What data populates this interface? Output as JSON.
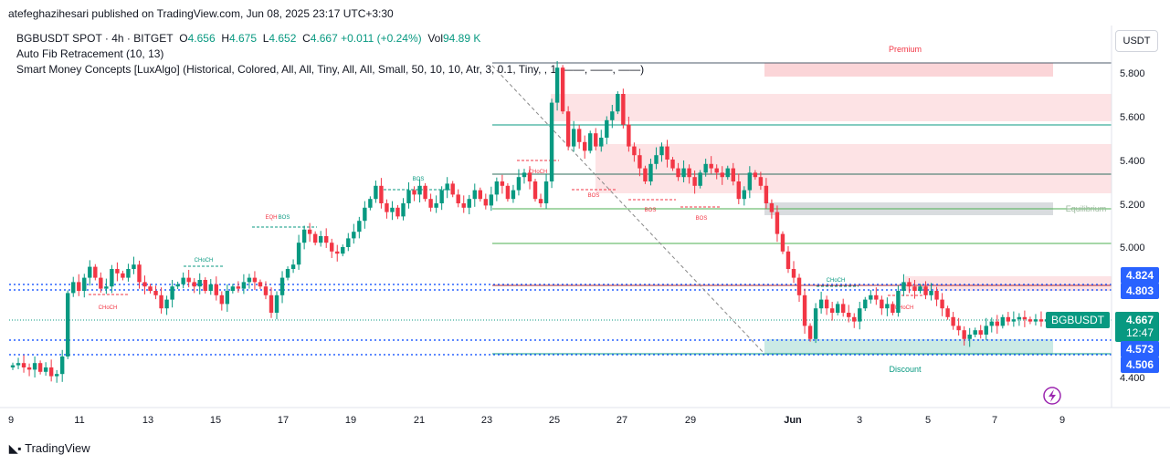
{
  "publisher_line": "atefeghazihesari published on TradingView.com, Jun 08, 2025 23:17 UTC+3:30",
  "legend": {
    "symbol": "BGBUSDT SPOT · 4h · BITGET",
    "o_label": "O",
    "o_value": "4.656",
    "h_label": "H",
    "h_value": "4.675",
    "l_label": "L",
    "l_value": "4.652",
    "c_label": "C",
    "c_value": "4.667",
    "change": "+0.011 (+0.24%)",
    "vol_label": "Vol",
    "vol_value": "94.89 K",
    "indicator1": "Auto Fib Retracement (10, 13)",
    "indicator2": "Smart Money Concepts [LuxAlgo] (Historical, Colored, All, All, Tiny, All, All, Small, 50, 10, 10, Atr, 3, 0.1, Tiny, , 1, ——, ——, ——)"
  },
  "currency_button": "USDT",
  "brand": "TradingView",
  "price_badges": {
    "level_a": "4.824",
    "level_b": "4.803",
    "symbol_tag": "BGBUSDT",
    "last_price": "4.667",
    "countdown": "12:47",
    "level_c": "4.573",
    "level_d": "4.506"
  },
  "colors": {
    "up": "#089981",
    "down": "#f23645",
    "premium_zone": "#fbd5d8",
    "equilibrium_zone": "#d9d9d9",
    "discount_zone": "#cbeae5",
    "blue_levels": "#2962ff"
  },
  "chart_data": {
    "type": "candlestick",
    "symbol": "BGBUSDT",
    "timeframe": "4h",
    "ylim": [
      4.38,
      5.88
    ],
    "yticks": [
      "5.800",
      "5.600",
      "5.400",
      "5.200",
      "5.000",
      "4.400"
    ],
    "xticks": [
      "9",
      "11",
      "13",
      "15",
      "17",
      "19",
      "21",
      "23",
      "25",
      "27",
      "29",
      "Jun",
      "3",
      "5",
      "7",
      "9"
    ],
    "close_series": [
      4.46,
      4.47,
      4.45,
      4.44,
      4.47,
      4.43,
      4.45,
      4.41,
      4.42,
      4.5,
      4.79,
      4.84,
      4.8,
      4.86,
      4.91,
      4.86,
      4.81,
      4.82,
      4.9,
      4.88,
      4.86,
      4.9,
      4.92,
      4.84,
      4.82,
      4.8,
      4.78,
      4.72,
      4.76,
      4.82,
      4.83,
      4.86,
      4.84,
      4.82,
      4.85,
      4.8,
      4.83,
      4.78,
      4.74,
      4.8,
      4.82,
      4.81,
      4.84,
      4.86,
      4.84,
      4.82,
      4.78,
      4.7,
      4.78,
      4.86,
      4.9,
      4.92,
      5.02,
      5.08,
      5.06,
      5.02,
      5.05,
      5.02,
      4.98,
      4.97,
      5.0,
      5.04,
      5.07,
      5.12,
      5.18,
      5.22,
      5.28,
      5.2,
      5.16,
      5.18,
      5.14,
      5.2,
      5.26,
      5.24,
      5.28,
      5.22,
      5.18,
      5.2,
      5.26,
      5.29,
      5.24,
      5.2,
      5.18,
      5.22,
      5.26,
      5.22,
      5.19,
      5.24,
      5.3,
      5.28,
      5.22,
      5.26,
      5.32,
      5.34,
      5.3,
      5.22,
      5.2,
      5.3,
      5.66,
      5.82,
      5.62,
      5.46,
      5.54,
      5.48,
      5.44,
      5.52,
      5.46,
      5.5,
      5.58,
      5.62,
      5.7,
      5.56,
      5.46,
      5.42,
      5.36,
      5.3,
      5.38,
      5.42,
      5.46,
      5.4,
      5.36,
      5.32,
      5.36,
      5.32,
      5.28,
      5.34,
      5.38,
      5.36,
      5.34,
      5.32,
      5.36,
      5.3,
      5.22,
      5.26,
      5.34,
      5.32,
      5.28,
      5.2,
      5.16,
      5.06,
      4.98,
      4.9,
      4.86,
      4.78,
      4.64,
      4.58,
      4.72,
      4.76,
      4.72,
      4.7,
      4.74,
      4.7,
      4.68,
      4.66,
      4.72,
      4.76,
      4.78,
      4.76,
      4.72,
      4.74,
      4.7,
      4.8,
      4.84,
      4.82,
      4.8,
      4.82,
      4.78,
      4.8,
      4.76,
      4.72,
      4.68,
      4.64,
      4.62,
      4.58,
      4.6,
      4.62,
      4.6,
      4.64,
      4.66,
      4.64,
      4.68,
      4.66,
      4.67,
      4.68,
      4.67,
      4.66,
      4.67,
      4.66,
      4.67,
      4.67
    ],
    "zones": [
      {
        "label": "Premium"
      },
      {
        "label": "Equilibrium"
      },
      {
        "label": "Discount"
      }
    ],
    "structure_labels": [
      "CHoCH",
      "CHoCH",
      "EQH",
      "BOS",
      "BOS",
      "CHoCH",
      "BOS",
      "BOS",
      "BOS",
      "CHoCH",
      "CHoCH"
    ],
    "grid": false
  }
}
